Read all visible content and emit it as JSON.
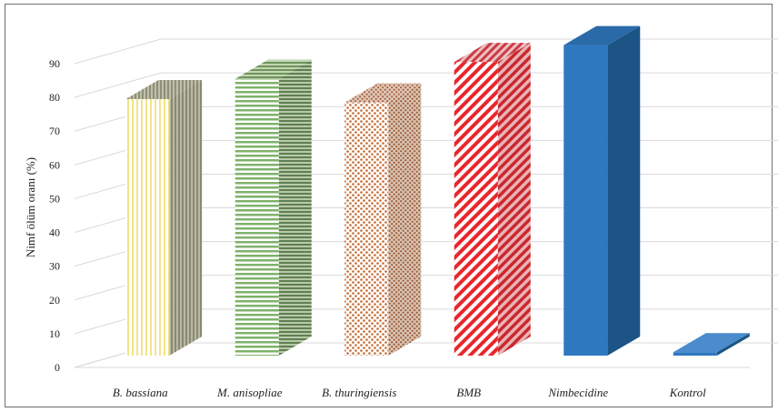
{
  "chart_data": {
    "type": "bar",
    "title": "",
    "ylabel": "Nimf ölüm oranı (%)",
    "xlabel": "",
    "ylim": [
      0,
      90
    ],
    "yticks": [
      "0",
      "10",
      "20",
      "30",
      "40",
      "50",
      "60",
      "70",
      "80",
      "90"
    ],
    "categories": [
      "B. bassiana",
      "M. anisopliae",
      "B. thuringiensis",
      "BMB",
      "Nimbecidine",
      "Kontrol"
    ],
    "values": [
      76,
      82,
      75,
      87,
      92,
      1
    ],
    "grid": true,
    "legend": "none",
    "bar_styles": [
      {
        "pattern": "vertical-stripes",
        "front": "#f6eba0",
        "side": "#9a9a82",
        "top": "#a8a690"
      },
      {
        "pattern": "horizontal-stripes",
        "front": "#8db97a",
        "side": "#6f8f5f",
        "top": "#7ea36b"
      },
      {
        "pattern": "dots",
        "front": "#c46a34",
        "side": "#9a5a34",
        "top": "#a86040"
      },
      {
        "pattern": "diagonal-stripes",
        "front": "#e8262c",
        "side": "#c8282e",
        "top": "#d04048"
      },
      {
        "pattern": "solid",
        "front": "#2e78c0",
        "side": "#1c5585",
        "top": "#2a6aa8"
      },
      {
        "pattern": "solid",
        "front": "#2e78c0",
        "side": "#1c5585",
        "top": "#4a8ccc"
      }
    ]
  }
}
